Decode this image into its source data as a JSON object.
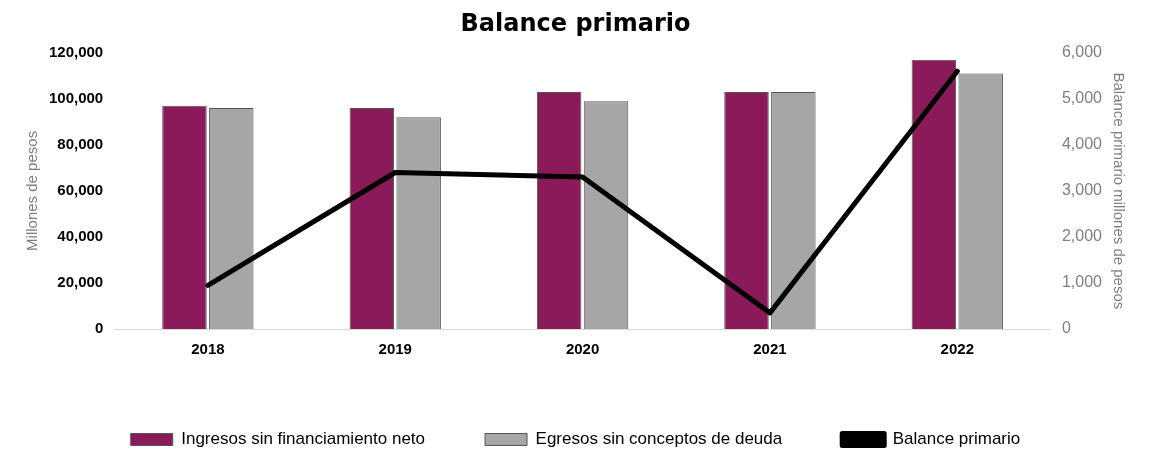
{
  "chart_data": {
    "type": "bar",
    "title": "Balance primario",
    "ylabel": "Millones de pesos",
    "y2label": "Balance primario millones de pesos",
    "categories": [
      "2018",
      "2019",
      "2020",
      "2021",
      "2022"
    ],
    "series": [
      {
        "name": "Ingresos sin financiamiento neto",
        "color": "#8b1a5a",
        "values": [
          97000,
          96000,
          103000,
          103000,
          117000
        ]
      },
      {
        "name": "Egresos sin conceptos de deuda",
        "color": "#a6a6a6",
        "values": [
          96000,
          92000,
          99000,
          103000,
          111000
        ]
      },
      {
        "name": "Balance primario",
        "color": "#000000",
        "type": "line",
        "axis": "y2",
        "values": [
          950,
          3400,
          3300,
          350,
          5600
        ]
      }
    ],
    "ylim": [
      0,
      120000
    ],
    "yticks": [
      0,
      {
        "value": 20000,
        "label": "20,000"
      },
      {
        "value": 40000,
        "label": "40,000"
      },
      {
        "value": 60000,
        "label": "60,000"
      },
      {
        "value": 80000,
        "label": "80,000"
      },
      {
        "value": 100000,
        "label": "100,000"
      },
      {
        "value": 120000,
        "label": "120,000"
      }
    ],
    "y2lim": [
      0,
      6000
    ],
    "y2ticks": [
      0,
      {
        "value": 1000,
        "label": "1,000"
      },
      {
        "value": 2000,
        "label": "2,000"
      },
      {
        "value": 3000,
        "label": "3,000"
      },
      {
        "value": 4000,
        "label": "4,000"
      },
      {
        "value": 5000,
        "label": "5,000"
      },
      {
        "value": 6000,
        "label": "6,000"
      }
    ],
    "grid": false,
    "legend": "bottom",
    "marker": "none",
    "line_style": "solid"
  }
}
